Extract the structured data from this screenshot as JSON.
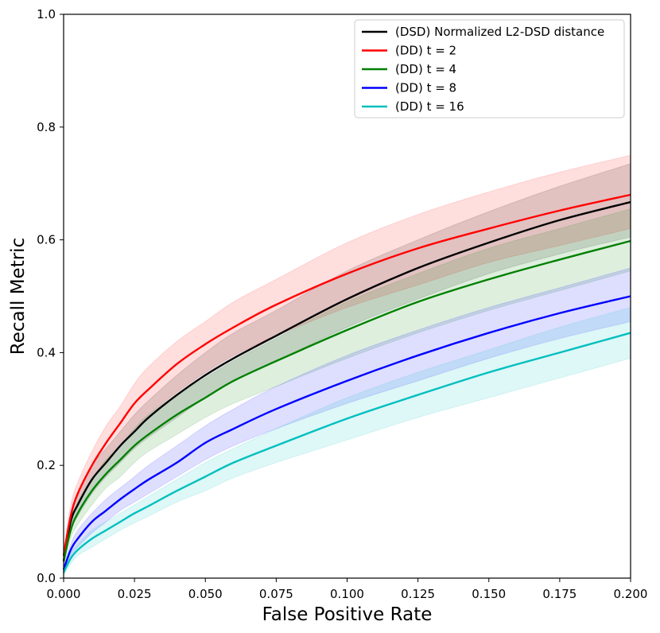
{
  "chart_data": {
    "type": "line",
    "title": "",
    "xlabel": "False Positive Rate",
    "ylabel": "Recall Metric",
    "xlim": [
      0.0,
      0.2
    ],
    "ylim": [
      0.0,
      1.0
    ],
    "xticks": [
      "0.000",
      "0.025",
      "0.050",
      "0.075",
      "0.100",
      "0.125",
      "0.150",
      "0.175",
      "0.200"
    ],
    "yticks": [
      "0.0",
      "0.2",
      "0.4",
      "0.6",
      "0.8",
      "1.0"
    ],
    "grid": false,
    "legend_position": "top-right",
    "x": [
      0.0,
      0.0025,
      0.005,
      0.01,
      0.015,
      0.02,
      0.025,
      0.03,
      0.04,
      0.05,
      0.06,
      0.075,
      0.1,
      0.125,
      0.15,
      0.175,
      0.2
    ],
    "series": [
      {
        "name": "(DSD) Normalized L2-DSD distance",
        "color": "#000000",
        "values": [
          0.03,
          0.1,
          0.13,
          0.175,
          0.205,
          0.235,
          0.26,
          0.285,
          0.325,
          0.36,
          0.39,
          0.43,
          0.495,
          0.55,
          0.595,
          0.635,
          0.667
        ],
        "lower": [
          0.02,
          0.085,
          0.11,
          0.15,
          0.18,
          0.205,
          0.23,
          0.25,
          0.285,
          0.32,
          0.35,
          0.385,
          0.445,
          0.495,
          0.54,
          0.575,
          0.605
        ],
        "upper": [
          0.04,
          0.115,
          0.15,
          0.2,
          0.23,
          0.26,
          0.29,
          0.315,
          0.36,
          0.4,
          0.435,
          0.475,
          0.545,
          0.6,
          0.65,
          0.695,
          0.735
        ]
      },
      {
        "name": "(DD) t = 2",
        "color": "#ff0000",
        "values": [
          0.04,
          0.11,
          0.15,
          0.2,
          0.24,
          0.275,
          0.31,
          0.335,
          0.38,
          0.415,
          0.445,
          0.485,
          0.54,
          0.585,
          0.62,
          0.652,
          0.68
        ],
        "lower": [
          0.03,
          0.095,
          0.13,
          0.175,
          0.21,
          0.24,
          0.265,
          0.29,
          0.33,
          0.365,
          0.395,
          0.43,
          0.48,
          0.52,
          0.56,
          0.59,
          0.62
        ],
        "upper": [
          0.05,
          0.13,
          0.17,
          0.225,
          0.27,
          0.305,
          0.345,
          0.375,
          0.42,
          0.455,
          0.49,
          0.53,
          0.595,
          0.645,
          0.685,
          0.72,
          0.75
        ]
      },
      {
        "name": "(DD) t = 4",
        "color": "#008000",
        "values": [
          0.03,
          0.085,
          0.115,
          0.155,
          0.185,
          0.21,
          0.235,
          0.255,
          0.29,
          0.32,
          0.35,
          0.385,
          0.44,
          0.49,
          0.53,
          0.565,
          0.598
        ],
        "lower": [
          0.02,
          0.07,
          0.095,
          0.13,
          0.16,
          0.18,
          0.205,
          0.225,
          0.255,
          0.285,
          0.31,
          0.34,
          0.39,
          0.435,
          0.475,
          0.51,
          0.545
        ],
        "upper": [
          0.04,
          0.1,
          0.135,
          0.175,
          0.21,
          0.235,
          0.265,
          0.29,
          0.325,
          0.355,
          0.385,
          0.425,
          0.49,
          0.54,
          0.585,
          0.62,
          0.655
        ]
      },
      {
        "name": "(DD) t = 8",
        "color": "#0000ff",
        "values": [
          0.015,
          0.05,
          0.07,
          0.1,
          0.12,
          0.14,
          0.158,
          0.175,
          0.205,
          0.24,
          0.265,
          0.3,
          0.35,
          0.395,
          0.435,
          0.47,
          0.5
        ],
        "lower": [
          0.01,
          0.04,
          0.055,
          0.08,
          0.1,
          0.12,
          0.135,
          0.15,
          0.18,
          0.21,
          0.235,
          0.265,
          0.31,
          0.35,
          0.39,
          0.425,
          0.455
        ],
        "upper": [
          0.02,
          0.06,
          0.085,
          0.115,
          0.14,
          0.16,
          0.18,
          0.2,
          0.235,
          0.27,
          0.3,
          0.34,
          0.395,
          0.44,
          0.48,
          0.515,
          0.55
        ]
      },
      {
        "name": "(DD) t = 16",
        "color": "#00bfbf",
        "values": [
          0.01,
          0.035,
          0.05,
          0.07,
          0.085,
          0.1,
          0.115,
          0.128,
          0.155,
          0.18,
          0.205,
          0.235,
          0.283,
          0.325,
          0.365,
          0.4,
          0.435
        ],
        "lower": [
          0.005,
          0.025,
          0.04,
          0.055,
          0.07,
          0.085,
          0.098,
          0.11,
          0.135,
          0.155,
          0.178,
          0.205,
          0.245,
          0.285,
          0.32,
          0.355,
          0.39
        ],
        "upper": [
          0.015,
          0.045,
          0.06,
          0.085,
          0.1,
          0.115,
          0.13,
          0.145,
          0.175,
          0.205,
          0.23,
          0.265,
          0.32,
          0.365,
          0.405,
          0.445,
          0.48
        ]
      }
    ]
  }
}
